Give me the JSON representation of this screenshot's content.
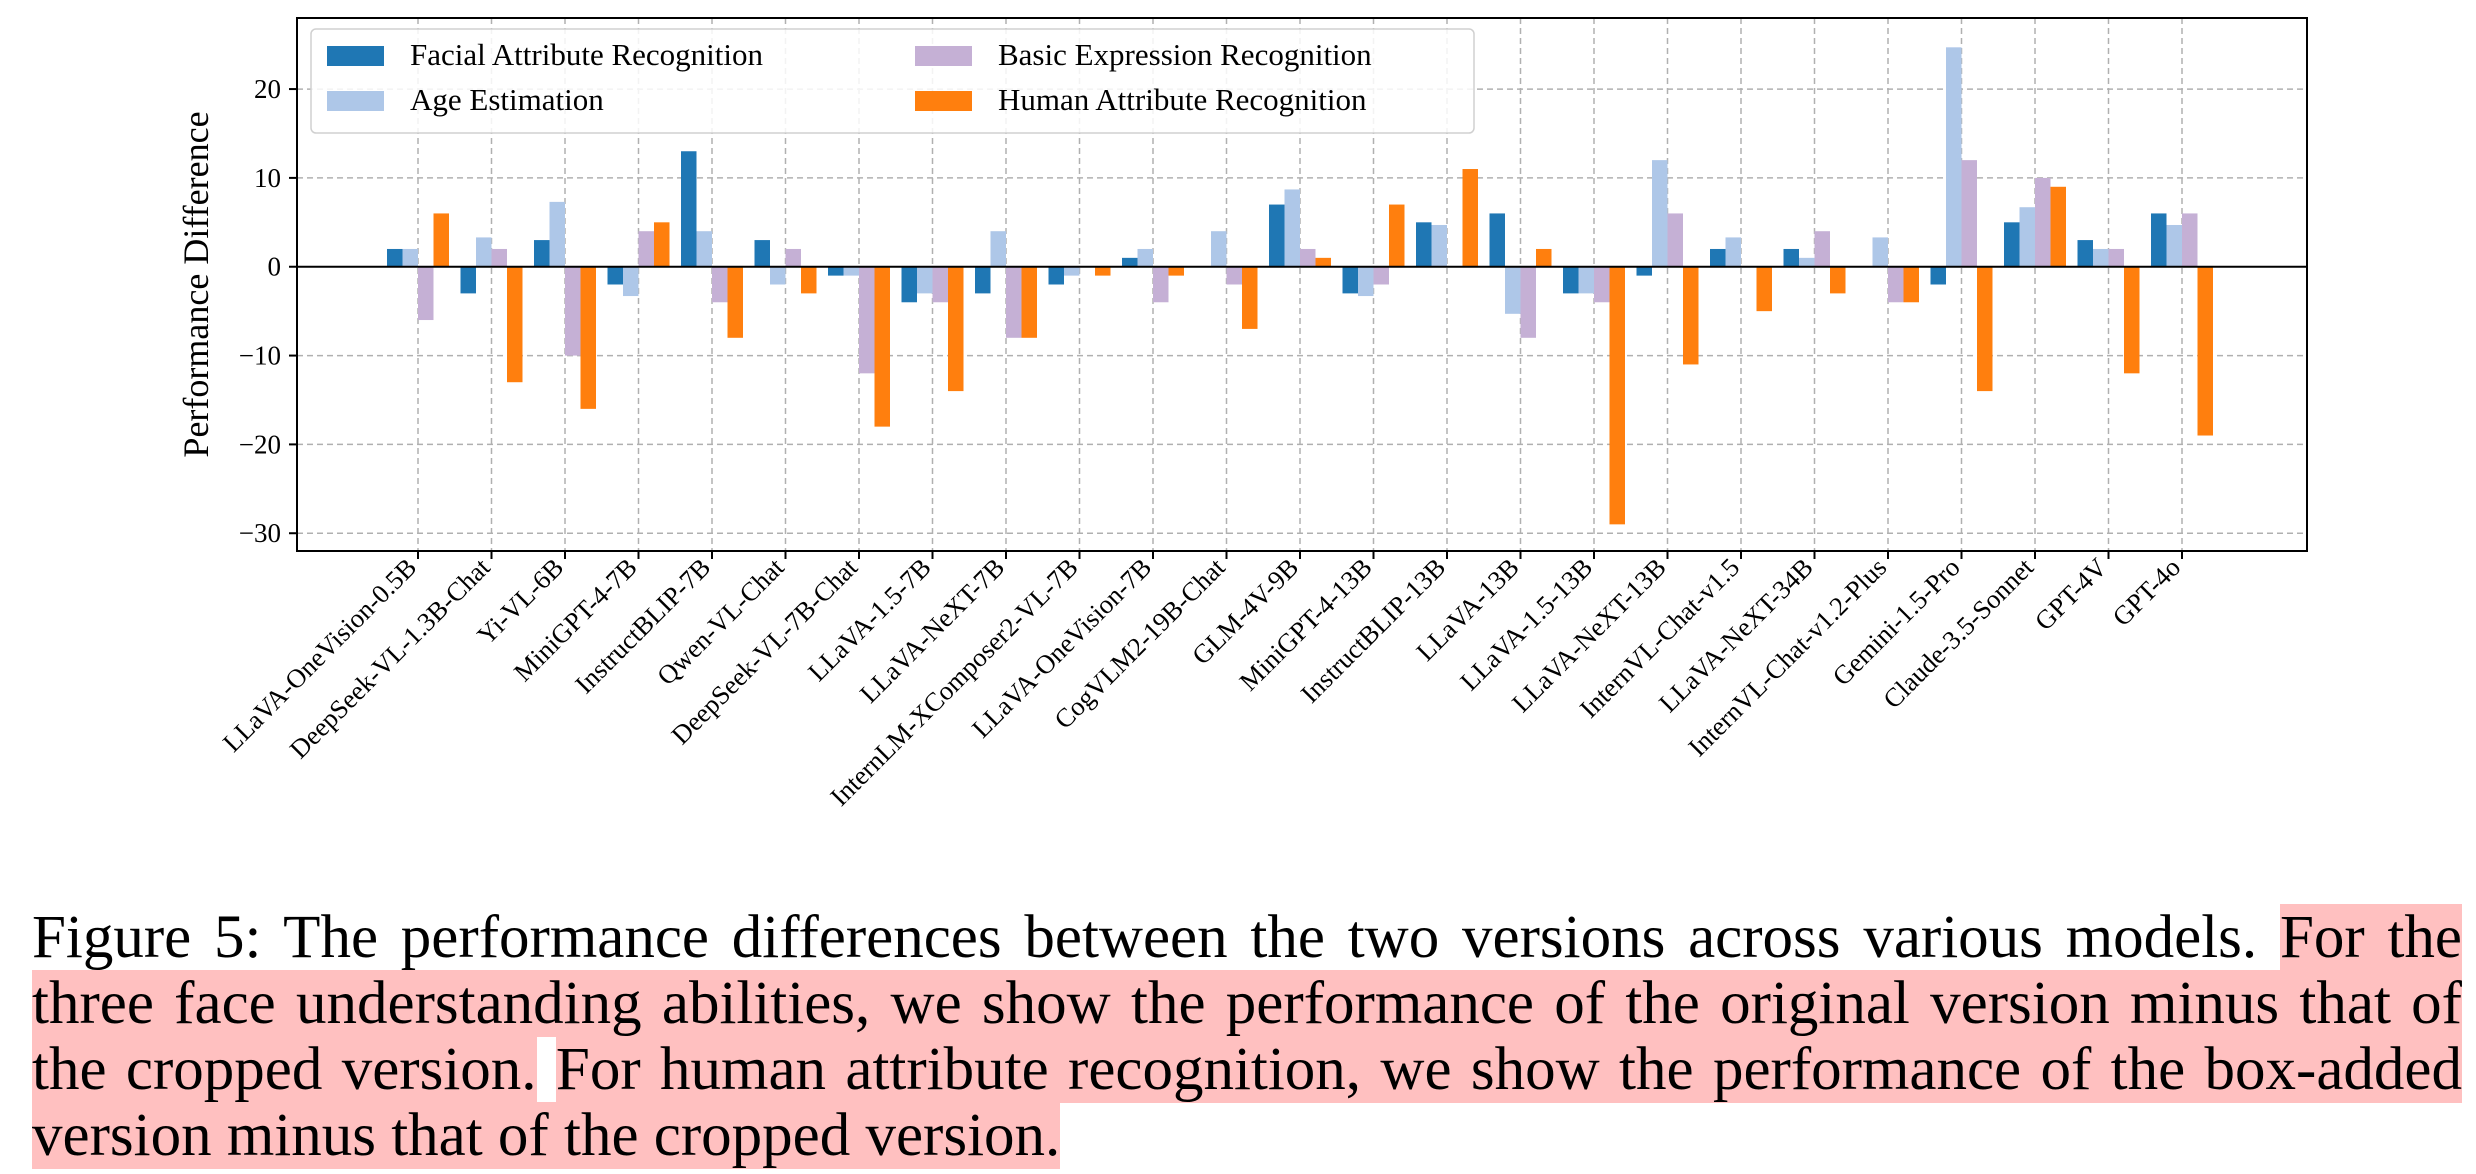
{
  "chart_data": {
    "type": "bar",
    "ylabel": "Performance Difference",
    "ylim": [
      -32,
      28
    ],
    "yticks": [
      -30,
      -20,
      -10,
      0,
      10,
      20
    ],
    "grid": true,
    "legend_position": "upper-left",
    "categories": [
      "LLaVA-OneVision-0.5B",
      "DeepSeek-VL-1.3B-Chat",
      "Yi-VL-6B",
      "MiniGPT-4-7B",
      "InstructBLIP-7B",
      "Qwen-VL-Chat",
      "DeepSeek-VL-7B-Chat",
      "LLaVA-1.5-7B",
      "LLaVA-NeXT-7B",
      "InternLM-XComposer2-VL-7B",
      "LLaVA-OneVision-7B",
      "CogVLM2-19B-Chat",
      "GLM-4V-9B",
      "MiniGPT-4-13B",
      "InstructBLIP-13B",
      "LLaVA-13B",
      "LLaVA-1.5-13B",
      "LLaVA-NeXT-13B",
      "InternVL-Chat-v1.5",
      "LLaVA-NeXT-34B",
      "InternVL-Chat-v1.2-Plus",
      "Gemini-1.5-Pro",
      "Claude-3.5-Sonnet",
      "GPT-4V",
      "GPT-4o"
    ],
    "series": [
      {
        "name": "Facial Attribute Recognition",
        "color": "#1f77b4",
        "values": [
          2,
          -3,
          3,
          -2,
          13,
          3,
          -1,
          -4,
          -3,
          -2,
          1,
          0,
          7,
          -3,
          5,
          6,
          -3,
          -1,
          2,
          2,
          0,
          -2,
          5,
          3,
          6
        ]
      },
      {
        "name": "Age Estimation",
        "color": "#aec7e8",
        "values": [
          2,
          3.3,
          7.3,
          -3.3,
          4,
          -2,
          -1,
          -3,
          4,
          -1,
          2,
          4,
          8.7,
          -3.3,
          4.7,
          -5.3,
          -3,
          12,
          3.3,
          1,
          3.3,
          24.7,
          6.7,
          2,
          4.7
        ]
      },
      {
        "name": "Basic Expression Recognition",
        "color": "#c5b0d5",
        "values": [
          -6,
          2,
          -10,
          4,
          -4,
          2,
          -12,
          -4,
          -8,
          0,
          -4,
          -2,
          2,
          -2,
          0,
          -8,
          -4,
          6,
          0,
          4,
          -4,
          12,
          10,
          2,
          6
        ]
      },
      {
        "name": "Human Attribute Recognition",
        "color": "#ff7f0e",
        "values": [
          6,
          -13,
          -16,
          5,
          -8,
          -3,
          -18,
          -14,
          -8,
          -1,
          -1,
          -7,
          1,
          7,
          11,
          2,
          -29,
          -11,
          -5,
          -3,
          -4,
          -14,
          9,
          -12,
          -19
        ]
      }
    ]
  },
  "caption": {
    "lead": "Figure 5: The performance differences between the two versions across various models. ",
    "highlight1": "For the three face understanding abilities, we show the performance of the original version minus that of the cropped version.",
    "gap": " ",
    "highlight2": "For human attribute recognition, we show the performance of the box-added version minus that of the cropped version."
  }
}
